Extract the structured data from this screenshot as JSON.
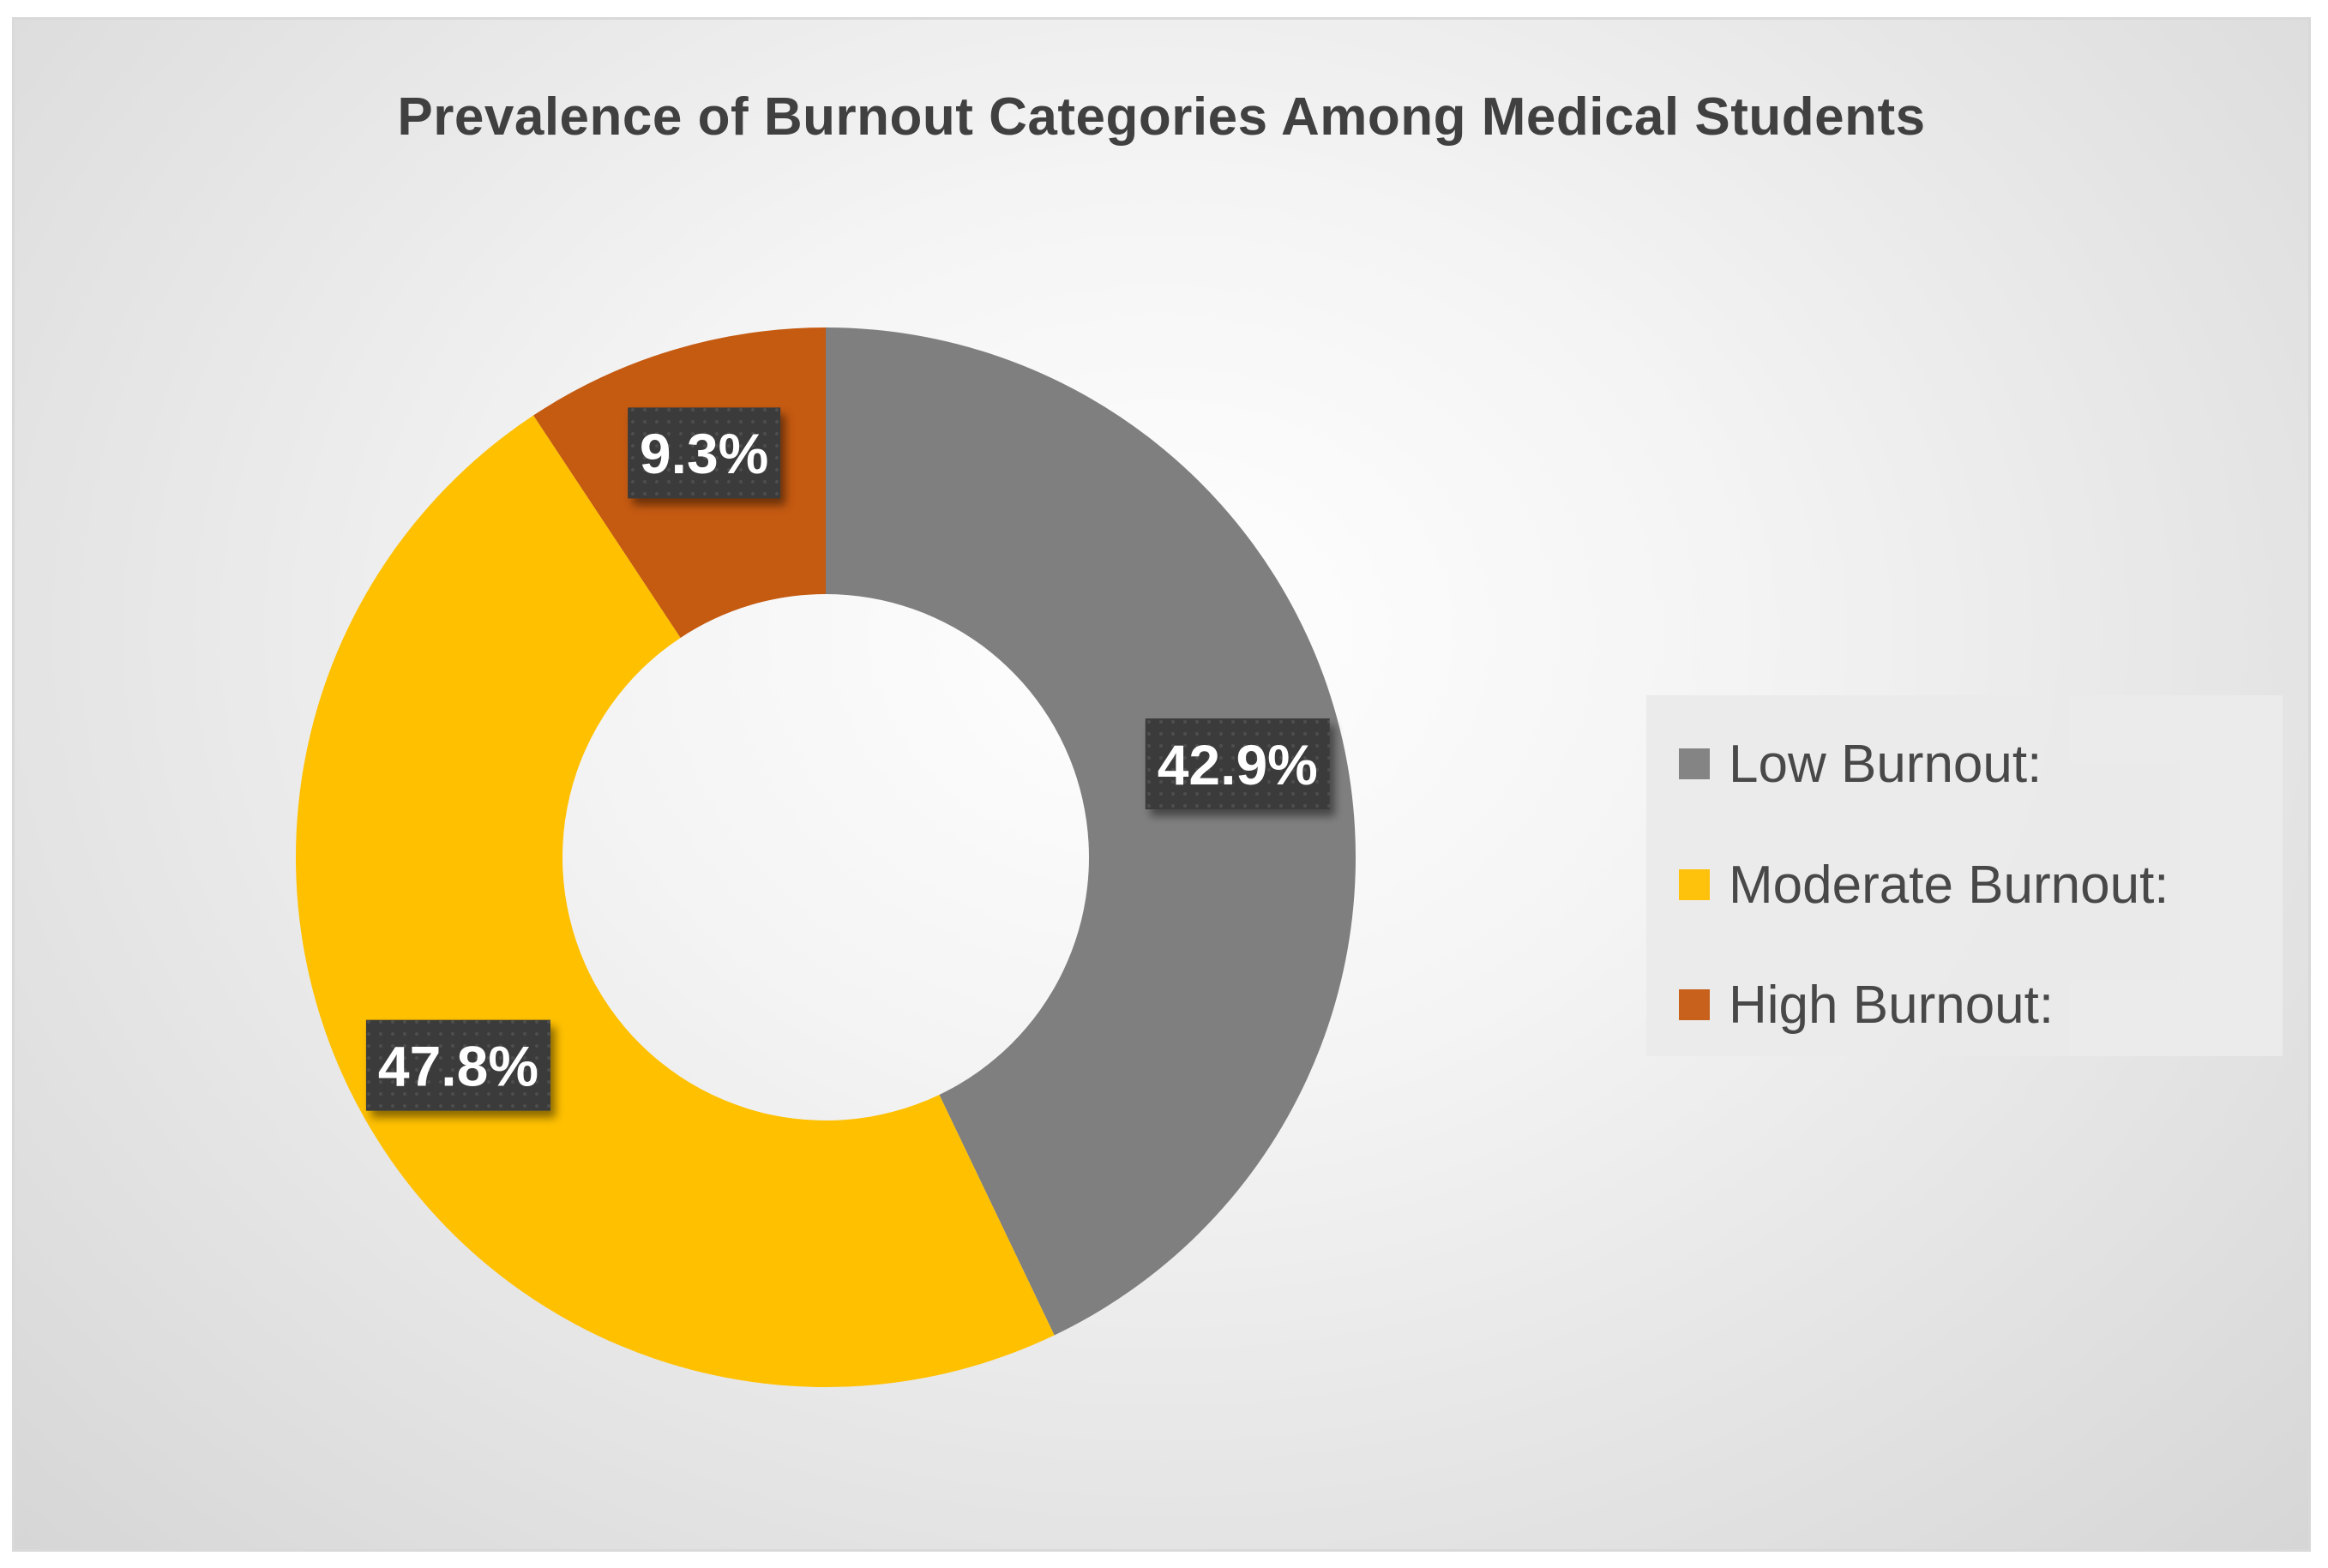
{
  "chart_data": {
    "type": "pie",
    "title": "Prevalence of Burnout Categories Among Medical Students",
    "donut": true,
    "slices": [
      {
        "name": "Low Burnout:",
        "value": 42.9,
        "label": "42.9%",
        "color": "#7f7f7f"
      },
      {
        "name": "Moderate Burnout:",
        "value": 47.8,
        "label": "47.8%",
        "color": "#ffc000"
      },
      {
        "name": "High Burnout:",
        "value": 9.3,
        "label": "9.3%",
        "color": "#c55a11"
      }
    ],
    "legend_position": "right",
    "label_box_color": "#3a3a3a",
    "label_text_color": "#ffffff"
  }
}
